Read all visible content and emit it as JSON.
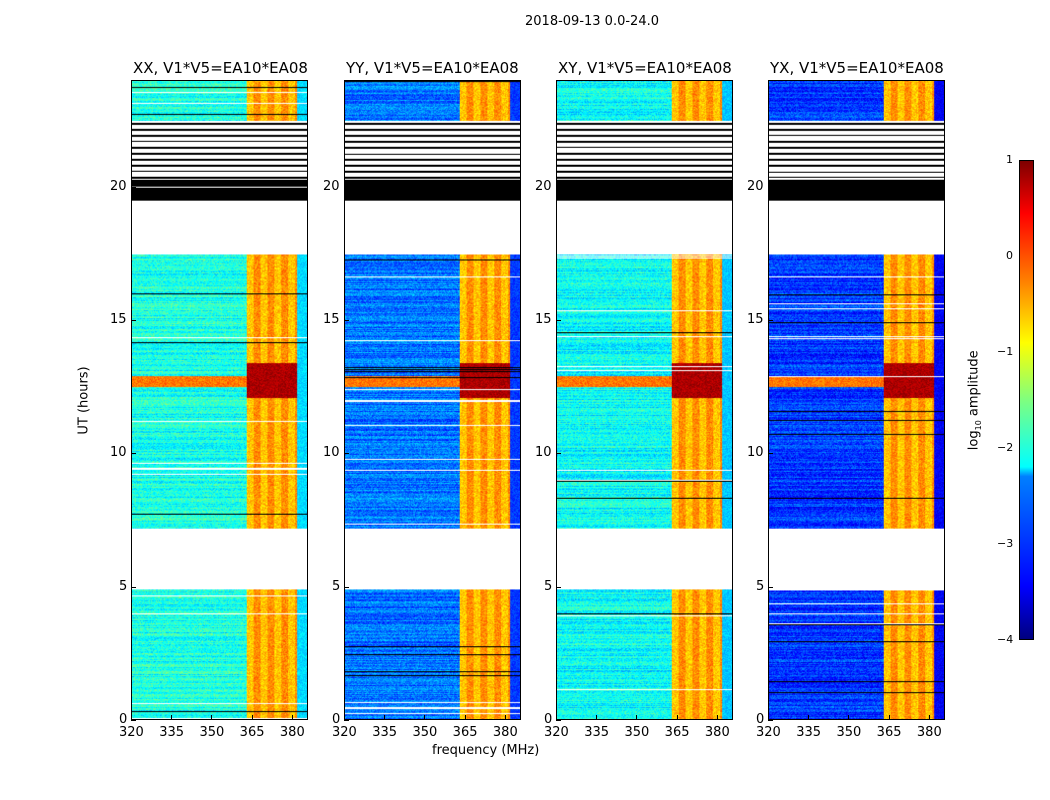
{
  "suptitle": "2018-09-13 0.0-24.0",
  "xlabel": "frequency (MHz)",
  "ylabel": "UT (hours)",
  "colorbar": {
    "label_main": "log",
    "label_sub": "10",
    "label_rest": " amplitude",
    "ticks": [
      "1",
      "0",
      "−1",
      "−2",
      "−3",
      "−4"
    ],
    "values": [
      1,
      0,
      -1,
      -2,
      -3,
      -4
    ],
    "range": [
      -4,
      1
    ],
    "colormap": "jet"
  },
  "chart_data": {
    "type": "heatmap",
    "title": "2018-09-13 0.0-24.0",
    "xlabel": "frequency (MHz)",
    "ylabel": "UT (hours)",
    "xlim": [
      320,
      386
    ],
    "ylim": [
      0,
      24
    ],
    "xticks": [
      "320",
      "335",
      "350",
      "365",
      "380"
    ],
    "xtick_values": [
      320,
      335,
      350,
      365,
      380
    ],
    "yticks": [
      "0",
      "5",
      "10",
      "15",
      "20"
    ],
    "ytick_values": [
      0,
      5,
      10,
      15,
      20
    ],
    "panels": [
      {
        "title": "XX, V1*V5=EA10*EA08",
        "base_level": -2.0
      },
      {
        "title": "YY, V1*V5=EA10*EA08",
        "base_level": -2.8
      },
      {
        "title": "XY, V1*V5=EA10*EA08",
        "base_level": -2.1
      },
      {
        "title": "YX, V1*V5=EA10*EA08",
        "base_level": -3.1
      }
    ],
    "rfi_band_mhz": [
      363,
      380
    ],
    "rfi_level": -0.6,
    "strong_rfi_hours": [
      12.1,
      13.4
    ],
    "strong_rfi_level": 0.7,
    "blank_hours": [
      [
        4.9,
        7.2
      ],
      [
        17.5,
        19.5
      ]
    ],
    "flagged_hours": [
      [
        19.5,
        22.5
      ]
    ],
    "colorbar_range": [
      -4,
      1
    ]
  }
}
